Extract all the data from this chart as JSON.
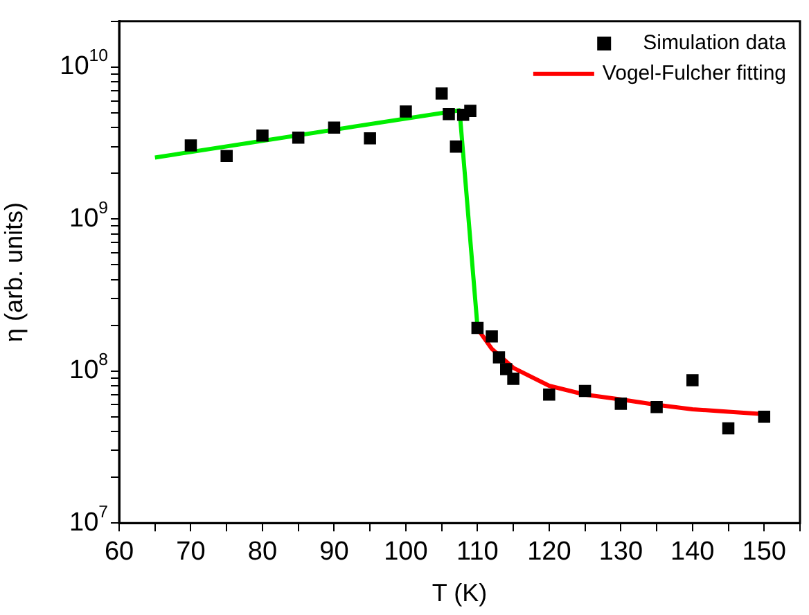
{
  "chart_data": {
    "type": "scatter",
    "xlabel": "T (K)",
    "ylabel": "η (arb. units)",
    "log": "y",
    "grid": false,
    "legend": "top right",
    "xlim": [
      60,
      155
    ],
    "xticks": [
      60,
      {
        "value": 65,
        "label": null
      },
      70,
      {
        "value": 75,
        "label": null
      },
      80,
      {
        "value": 85,
        "label": null
      },
      90,
      {
        "value": 95,
        "label": null
      },
      100,
      {
        "value": 105,
        "label": null
      },
      110,
      {
        "value": 115,
        "label": null
      },
      120,
      {
        "value": 125,
        "label": null
      },
      130,
      {
        "value": 135,
        "label": null
      },
      140,
      {
        "value": 145,
        "label": null
      },
      150,
      {
        "value": 155,
        "label": null
      }
    ],
    "ylim": [
      10000000,
      20000000000
    ],
    "yticks": [
      {
        "value": 10000000,
        "label": "10$^{7}$"
      },
      {
        "value": 20000000,
        "label": null
      },
      {
        "value": 30000000,
        "label": null
      },
      {
        "value": 40000000,
        "label": null
      },
      {
        "value": 50000000,
        "label": null
      },
      {
        "value": 60000000,
        "label": null
      },
      {
        "value": 70000000,
        "label": null
      },
      {
        "value": 80000000,
        "label": null
      },
      {
        "value": 90000000,
        "label": null
      },
      {
        "value": 100000000,
        "label": "10$^{8}$"
      },
      {
        "value": 200000000,
        "label": null
      },
      {
        "value": 300000000,
        "label": null
      },
      {
        "value": 400000000,
        "label": null
      },
      {
        "value": 500000000,
        "label": null
      },
      {
        "value": 600000000,
        "label": null
      },
      {
        "value": 700000000,
        "label": null
      },
      {
        "value": 800000000,
        "label": null
      },
      {
        "value": 900000000,
        "label": null
      },
      {
        "value": 1000000000,
        "label": "10$^{9}$"
      },
      {
        "value": 2000000000,
        "label": null
      },
      {
        "value": 3000000000,
        "label": null
      },
      {
        "value": 4000000000,
        "label": null
      },
      {
        "value": 5000000000,
        "label": null
      },
      {
        "value": 6000000000,
        "label": null
      },
      {
        "value": 7000000000,
        "label": null
      },
      {
        "value": 8000000000,
        "label": null
      },
      {
        "value": 9000000000,
        "label": null
      },
      {
        "value": 10000000000,
        "label": "10$^{10}$"
      },
      {
        "value": 20000000000,
        "label": null
      }
    ],
    "series": [
      {
        "name": "Simulation data",
        "type": "scatter",
        "marker": "square",
        "color": "#000000",
        "x": [
          70,
          75,
          80,
          85,
          90,
          95,
          100,
          105,
          106,
          107,
          108,
          109,
          110,
          112,
          113,
          114,
          115,
          120,
          125,
          130,
          135,
          140,
          145,
          150
        ],
        "values": [
          3050000000,
          2600000000,
          3540000000,
          3430000000,
          4000000000,
          3400000000,
          5100000000,
          6700000000,
          4900000000,
          3000000000,
          4850000000,
          5150000000,
          192000000,
          169000000,
          123000000,
          103000000,
          89000000,
          70000000,
          74000000,
          61000000,
          58000000,
          87000000,
          42000000,
          50000000
        ]
      },
      {
        "type": "line",
        "marker": "none",
        "line_style": "solid",
        "color": "#00ee00",
        "x": [
          65,
          107.5,
          110
        ],
        "values": [
          2540000000,
          5200000000,
          195000000
        ]
      },
      {
        "name": "Vogel-Fulcher fitting",
        "type": "line",
        "marker": "none",
        "line_style": "solid",
        "color": "#ff0000",
        "x": [
          110,
          112,
          115,
          120,
          125,
          130,
          135,
          140,
          145,
          150
        ],
        "values": [
          190000000,
          140000000,
          105000000,
          80000000,
          70000000,
          65000000,
          60000000,
          56000000,
          54000000,
          52000000
        ]
      }
    ]
  }
}
